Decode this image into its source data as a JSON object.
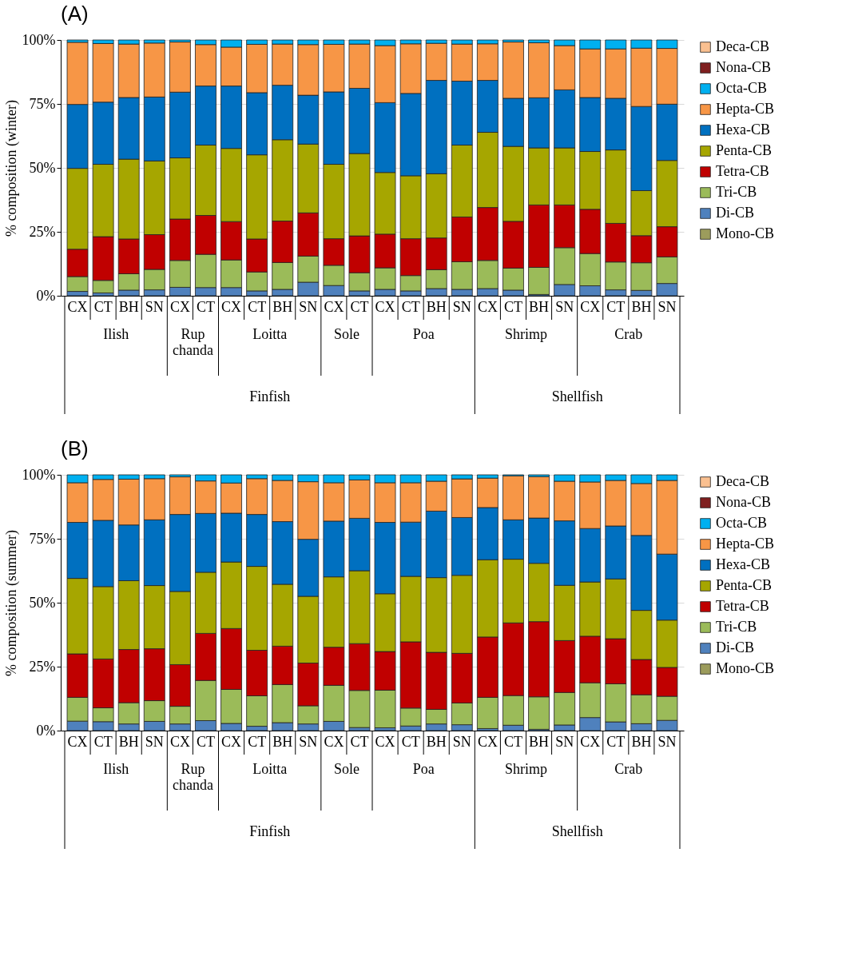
{
  "chart_data": [
    {
      "type": "bar",
      "title": "(A)",
      "ylabel": "% composition (winter)",
      "stacked": true,
      "legend": "right",
      "grid": "y",
      "categories": [
        "CX",
        "CT",
        "BH",
        "SN",
        "CX",
        "CT",
        "CX",
        "CT",
        "BH",
        "SN",
        "CX",
        "CT",
        "CX",
        "CT",
        "BH",
        "SN",
        "CX",
        "CT",
        "BH",
        "SN",
        "CX",
        "CT",
        "BH",
        "SN"
      ],
      "annotations": [
        "Ilish",
        "Rup chanda",
        "Loitta",
        "Sole",
        "Poa",
        "Shrimp",
        "Crab",
        "Finfish",
        "Shellfish"
      ],
      "ylim": [
        0,
        100
      ],
      "yticks": [
        {
          "value": 0,
          "label": "0%"
        },
        {
          "value": 25,
          "label": "25%"
        },
        {
          "value": 50,
          "label": "50%"
        },
        {
          "value": 75,
          "label": "75%"
        },
        {
          "value": 100,
          "label": "100%"
        }
      ],
      "series": [
        {
          "name": "Mono-CB",
          "color": "#9c9c5c",
          "values": [
            0,
            0,
            0,
            0,
            0,
            0,
            0,
            0,
            0,
            0,
            0,
            0,
            0,
            0,
            0,
            0,
            0,
            0,
            0,
            0,
            0,
            0,
            0,
            0
          ]
        },
        {
          "name": "Di-CB",
          "color": "#4f81bd",
          "values": [
            1.7,
            1.1,
            2.2,
            2.3,
            3.3,
            3.2,
            3.2,
            1.9,
            2.5,
            5.3,
            4.0,
            1.9,
            2.5,
            1.9,
            2.8,
            2.5,
            2.8,
            2.2,
            0.5,
            4.4,
            3.9,
            2.3,
            2.1,
            4.8
          ]
        },
        {
          "name": "Tri-CB",
          "color": "#9bbb59",
          "values": [
            5.8,
            4.9,
            6.4,
            8.0,
            10.5,
            13.0,
            10.8,
            7.4,
            10.5,
            10.2,
            7.9,
            7.1,
            8.4,
            6.0,
            7.4,
            10.8,
            11.0,
            8.6,
            10.6,
            14.4,
            12.6,
            10.9,
            10.8,
            10.4
          ]
        },
        {
          "name": "Tetra-CB",
          "color": "#c00000",
          "values": [
            10.7,
            17.1,
            13.6,
            13.6,
            16.2,
            15.2,
            15.0,
            12.9,
            16.2,
            16.9,
            10.4,
            14.4,
            13.2,
            14.4,
            12.4,
            17.5,
            20.7,
            18.3,
            24.4,
            16.7,
            17.3,
            15.1,
            10.6,
            11.8
          ]
        },
        {
          "name": "Penta-CB",
          "color": "#a6a600",
          "values": [
            31.6,
            28.3,
            31.2,
            28.8,
            23.9,
            27.5,
            28.6,
            32.9,
            31.8,
            26.9,
            29.1,
            32.2,
            24.1,
            24.6,
            25.1,
            28.1,
            29.4,
            29.3,
            22.3,
            22.3,
            22.6,
            28.7,
            17.6,
            25.9
          ]
        },
        {
          "name": "Hexa-CB",
          "color": "#0070c0",
          "values": [
            25.0,
            24.3,
            24.1,
            25.0,
            25.7,
            23.1,
            24.4,
            24.3,
            21.3,
            19.1,
            28.3,
            25.5,
            27.3,
            32.2,
            36.5,
            25.0,
            20.3,
            18.8,
            19.6,
            22.7,
            21.1,
            20.2,
            32.9,
            22.0
          ]
        },
        {
          "name": "Hepta-CB",
          "color": "#f79646",
          "values": [
            24.3,
            22.9,
            20.9,
            21.1,
            19.6,
            16.2,
            15.2,
            18.9,
            16.1,
            19.8,
            18.6,
            17.3,
            22.3,
            19.4,
            14.5,
            14.5,
            14.3,
            22.0,
            21.5,
            17.3,
            19.0,
            19.3,
            22.8,
            21.8
          ]
        },
        {
          "name": "Octa-CB",
          "color": "#00b0f0",
          "values": [
            0.9,
            1.4,
            1.6,
            1.2,
            0.8,
            1.8,
            2.8,
            1.7,
            1.6,
            1.8,
            1.7,
            1.6,
            2.2,
            1.5,
            1.3,
            1.6,
            1.5,
            0.8,
            1.1,
            2.2,
            3.5,
            3.5,
            3.2,
            3.3
          ]
        },
        {
          "name": "Nona-CB",
          "color": "#7f1f1f",
          "values": [
            0,
            0,
            0,
            0,
            0,
            0,
            0,
            0,
            0,
            0,
            0,
            0,
            0,
            0,
            0,
            0,
            0,
            0,
            0,
            0,
            0,
            0,
            0,
            0
          ]
        },
        {
          "name": "Deca-CB",
          "color": "#fac090",
          "values": [
            0,
            0,
            0,
            0,
            0,
            0,
            0,
            0,
            0,
            0,
            0,
            0,
            0,
            0,
            0,
            0,
            0,
            0,
            0,
            0,
            0,
            0,
            0,
            0
          ]
        }
      ]
    },
    {
      "type": "bar",
      "title": "(B)",
      "ylabel": "% composition (summer)",
      "stacked": true,
      "legend": "right",
      "grid": "y",
      "categories": [
        "CX",
        "CT",
        "BH",
        "SN",
        "CX",
        "CT",
        "CX",
        "CT",
        "BH",
        "SN",
        "CX",
        "CT",
        "CX",
        "CT",
        "BH",
        "SN",
        "CX",
        "CT",
        "BH",
        "SN",
        "CX",
        "CT",
        "BH",
        "SN"
      ],
      "annotations": [
        "Ilish",
        "Rup chanda",
        "Loitta",
        "Sole",
        "Poa",
        "Shrimp",
        "Crab",
        "Finfish",
        "Shellfish"
      ],
      "ylim": [
        0,
        100
      ],
      "yticks": [
        {
          "value": 0,
          "label": "0%"
        },
        {
          "value": 25,
          "label": "25%"
        },
        {
          "value": 50,
          "label": "50%"
        },
        {
          "value": 75,
          "label": "75%"
        },
        {
          "value": 100,
          "label": "100%"
        }
      ],
      "series": [
        {
          "name": "Mono-CB",
          "color": "#9c9c5c",
          "values": [
            0,
            0,
            0,
            0,
            0,
            0,
            0,
            0,
            0,
            0,
            0,
            0,
            0,
            0,
            0,
            0,
            0,
            0,
            0,
            0,
            0,
            0,
            0,
            0
          ]
        },
        {
          "name": "Di-CB",
          "color": "#4f81bd",
          "values": [
            3.7,
            3.5,
            2.6,
            3.6,
            2.6,
            3.9,
            2.8,
            1.7,
            3.1,
            2.6,
            3.6,
            1.2,
            1.1,
            1.8,
            2.6,
            2.3,
            0.8,
            2.1,
            0.5,
            2.2,
            5.1,
            3.4,
            2.7,
            4.0
          ]
        },
        {
          "name": "Tri-CB",
          "color": "#9bbb59",
          "values": [
            9.3,
            5.4,
            8.3,
            8.1,
            6.9,
            15.7,
            13.3,
            11.9,
            14.9,
            7.1,
            14.1,
            14.5,
            14.7,
            7.0,
            5.7,
            8.5,
            12.2,
            11.6,
            12.7,
            12.7,
            13.6,
            14.9,
            11.3,
            9.4
          ]
        },
        {
          "name": "Tetra-CB",
          "color": "#c00000",
          "values": [
            17.0,
            19.1,
            20.8,
            20.3,
            16.3,
            18.4,
            23.8,
            17.8,
            15.0,
            16.7,
            14.9,
            18.3,
            15.1,
            25.9,
            22.3,
            19.4,
            23.6,
            28.4,
            29.4,
            20.3,
            18.2,
            17.6,
            13.8,
            11.3
          ]
        },
        {
          "name": "Penta-CB",
          "color": "#a6a600",
          "values": [
            29.5,
            28.3,
            26.9,
            24.7,
            28.6,
            23.9,
            26.0,
            32.8,
            24.2,
            26.1,
            27.5,
            28.5,
            22.6,
            25.6,
            29.2,
            30.5,
            30.2,
            24.9,
            22.8,
            21.6,
            21.2,
            23.4,
            19.2,
            18.5
          ]
        },
        {
          "name": "Hexa-CB",
          "color": "#0070c0",
          "values": [
            21.9,
            25.9,
            21.8,
            25.7,
            30.1,
            23.0,
            19.1,
            20.3,
            24.5,
            22.3,
            21.8,
            20.5,
            27.9,
            21.2,
            26.0,
            22.6,
            20.4,
            15.4,
            17.7,
            25.2,
            20.9,
            20.7,
            29.3,
            25.8
          ]
        },
        {
          "name": "Hepta-CB",
          "color": "#f79646",
          "values": [
            15.5,
            16.0,
            17.9,
            16.1,
            14.7,
            12.7,
            11.8,
            14.0,
            16.1,
            22.5,
            15.0,
            15.0,
            15.5,
            15.4,
            11.7,
            15.1,
            11.5,
            17.2,
            16.2,
            15.5,
            18.2,
            17.8,
            20.3,
            28.8
          ]
        },
        {
          "name": "Octa-CB",
          "color": "#00b0f0",
          "values": [
            3.1,
            1.8,
            1.7,
            1.5,
            0.8,
            2.4,
            3.2,
            1.5,
            2.2,
            2.7,
            3.1,
            2.0,
            3.1,
            3.1,
            2.5,
            1.6,
            1.3,
            0.4,
            0.7,
            2.5,
            2.8,
            2.2,
            3.4,
            2.2
          ]
        },
        {
          "name": "Nona-CB",
          "color": "#7f1f1f",
          "values": [
            0,
            0,
            0,
            0,
            0,
            0,
            0,
            0,
            0,
            0,
            0,
            0,
            0,
            0,
            0,
            0,
            0,
            0,
            0,
            0,
            0,
            0,
            0,
            0
          ]
        },
        {
          "name": "Deca-CB",
          "color": "#fac090",
          "values": [
            0,
            0,
            0,
            0,
            0,
            0,
            0,
            0,
            0,
            0,
            0,
            0,
            0,
            0,
            0,
            0,
            0,
            0,
            0,
            0,
            0,
            0,
            0,
            0
          ]
        }
      ]
    }
  ]
}
